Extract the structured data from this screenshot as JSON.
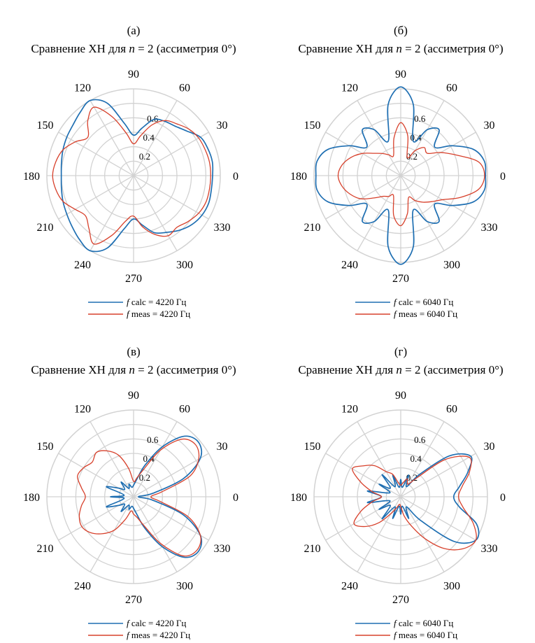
{
  "charts": [
    {
      "panel_label": "(а)",
      "title_prefix": "Сравнение ХН для ",
      "title_n": "n",
      "title_suffix": " = 2 (ассиметрия 0°)",
      "legend": [
        {
          "italic": "f",
          "text": " calc = 4220 Гц",
          "color": "#1f6fb2"
        },
        {
          "italic": "f",
          "text": " meas = 4220 Гц",
          "color": "#d7402b"
        }
      ]
    },
    {
      "panel_label": "(б)",
      "title_prefix": "Сравнение ХН для ",
      "title_n": "n",
      "title_suffix": " = 2 (ассиметрия 0°)",
      "legend": [
        {
          "italic": "f",
          "text": " calc = 6040 Гц",
          "color": "#1f6fb2"
        },
        {
          "italic": "f",
          "text": " meas = 6040 Гц",
          "color": "#d7402b"
        }
      ]
    },
    {
      "panel_label": "(в)",
      "title_prefix": "Сравнение ХН для ",
      "title_n": "n",
      "title_suffix": " = 2 (ассиметрия 0°)",
      "legend": [
        {
          "italic": "f",
          "text": " calc = 4220 Гц",
          "color": "#1f6fb2"
        },
        {
          "italic": "f",
          "text": " meas = 4220 Гц",
          "color": "#d7402b"
        }
      ]
    },
    {
      "panel_label": "(г)",
      "title_prefix": "Сравнение ХН для ",
      "title_n": "n",
      "title_suffix": " = 2 (ассиметрия 0°)",
      "legend": [
        {
          "italic": "f",
          "text": " calc = 6040 Гц",
          "color": "#1f6fb2"
        },
        {
          "italic": "f",
          "text": " meas = 6040 Гц",
          "color": "#d7402b"
        }
      ]
    }
  ],
  "chart_data": [
    {
      "type": "polar-line",
      "panel": "(а)",
      "title": "Сравнение ХН для n = 2 (ассиметрия 0°)",
      "r_ticks": [
        "0.2",
        "0.4",
        "0.6"
      ],
      "r_range": [
        0,
        0.9
      ],
      "theta_ticks": [
        "0",
        "30",
        "60",
        "90",
        "120",
        "150",
        "180",
        "210",
        "240",
        "270",
        "300",
        "330"
      ],
      "grid": true,
      "legend_position": "bottom",
      "series": [
        {
          "name": "f calc = 4220 Гц",
          "color": "#1f6fb2",
          "theta": [
            0,
            10,
            20,
            30,
            40,
            50,
            60,
            70,
            80,
            90,
            100,
            110,
            120,
            130,
            140,
            150,
            160,
            170,
            180,
            190,
            200,
            210,
            220,
            230,
            240,
            250,
            260,
            270,
            280,
            290,
            300,
            310,
            320,
            330,
            340,
            350
          ],
          "r": [
            0.82,
            0.83,
            0.82,
            0.8,
            0.72,
            0.67,
            0.65,
            0.62,
            0.5,
            0.42,
            0.55,
            0.8,
            0.9,
            0.86,
            0.82,
            0.8,
            0.78,
            0.76,
            0.75,
            0.76,
            0.78,
            0.8,
            0.83,
            0.87,
            0.9,
            0.8,
            0.56,
            0.45,
            0.52,
            0.63,
            0.68,
            0.74,
            0.79,
            0.82,
            0.83,
            0.82
          ]
        },
        {
          "name": "f meas = 4220 Гц",
          "color": "#d7402b",
          "theta": [
            0,
            10,
            20,
            30,
            40,
            50,
            60,
            70,
            80,
            90,
            100,
            110,
            120,
            130,
            140,
            150,
            160,
            170,
            180,
            190,
            200,
            210,
            220,
            230,
            240,
            250,
            260,
            270,
            280,
            290,
            300,
            310,
            320,
            330,
            340,
            350
          ],
          "r": [
            0.8,
            0.8,
            0.79,
            0.78,
            0.75,
            0.7,
            0.66,
            0.56,
            0.42,
            0.33,
            0.45,
            0.65,
            0.82,
            0.74,
            0.62,
            0.7,
            0.78,
            0.82,
            0.84,
            0.82,
            0.78,
            0.7,
            0.65,
            0.72,
            0.82,
            0.66,
            0.48,
            0.42,
            0.54,
            0.65,
            0.72,
            0.7,
            0.74,
            0.78,
            0.8,
            0.8
          ]
        }
      ]
    },
    {
      "type": "polar-line",
      "panel": "(б)",
      "title": "Сравнение ХН для n = 2 (ассиметрия 0°)",
      "r_ticks": [
        "0.2",
        "0.4",
        "0.6"
      ],
      "r_range": [
        0,
        0.9
      ],
      "theta_ticks": [
        "0",
        "30",
        "60",
        "90",
        "120",
        "150",
        "180",
        "210",
        "240",
        "270",
        "300",
        "330"
      ],
      "grid": true,
      "legend_position": "bottom",
      "series": [
        {
          "name": "f calc = 6040 Гц",
          "color": "#1f6fb2",
          "theta": [
            0,
            10,
            20,
            30,
            40,
            50,
            60,
            70,
            80,
            90,
            100,
            110,
            120,
            130,
            140,
            150,
            160,
            170,
            180,
            190,
            200,
            210,
            220,
            230,
            240,
            250,
            260,
            270,
            280,
            290,
            300,
            310,
            320,
            330,
            340,
            350
          ],
          "r": [
            0.88,
            0.88,
            0.8,
            0.62,
            0.46,
            0.62,
            0.55,
            0.38,
            0.75,
            0.92,
            0.75,
            0.38,
            0.55,
            0.62,
            0.46,
            0.62,
            0.8,
            0.88,
            0.88,
            0.88,
            0.8,
            0.62,
            0.46,
            0.62,
            0.55,
            0.38,
            0.75,
            0.92,
            0.75,
            0.38,
            0.55,
            0.62,
            0.46,
            0.62,
            0.8,
            0.88
          ]
        },
        {
          "name": "f meas = 6040 Гц",
          "color": "#d7402b",
          "theta": [
            0,
            10,
            20,
            30,
            40,
            50,
            60,
            70,
            80,
            90,
            100,
            110,
            120,
            130,
            140,
            150,
            160,
            170,
            180,
            190,
            200,
            210,
            220,
            230,
            240,
            250,
            260,
            270,
            280,
            290,
            300,
            310,
            320,
            330,
            340,
            350
          ],
          "r": [
            0.87,
            0.82,
            0.62,
            0.48,
            0.36,
            0.38,
            0.3,
            0.2,
            0.42,
            0.55,
            0.4,
            0.22,
            0.25,
            0.3,
            0.36,
            0.46,
            0.55,
            0.62,
            0.65,
            0.62,
            0.56,
            0.48,
            0.36,
            0.28,
            0.25,
            0.22,
            0.42,
            0.52,
            0.4,
            0.24,
            0.3,
            0.36,
            0.42,
            0.5,
            0.66,
            0.82
          ]
        }
      ]
    },
    {
      "type": "polar-line",
      "panel": "(в)",
      "title": "Сравнение ХН для n = 2 (ассиметрия 0°)",
      "r_ticks": [
        "0.2",
        "0.4",
        "0.6"
      ],
      "r_range": [
        0,
        0.9
      ],
      "theta_ticks": [
        "0",
        "30",
        "60",
        "90",
        "120",
        "150",
        "180",
        "210",
        "240",
        "270",
        "300",
        "330"
      ],
      "grid": true,
      "legend_position": "bottom",
      "series": [
        {
          "name": "f calc = 4220 Гц",
          "color": "#1f6fb2",
          "theta": [
            0,
            10,
            20,
            30,
            40,
            50,
            60,
            70,
            80,
            90,
            100,
            110,
            120,
            130,
            140,
            150,
            160,
            170,
            180,
            190,
            200,
            210,
            220,
            230,
            240,
            250,
            260,
            270,
            280,
            290,
            300,
            310,
            320,
            330,
            340,
            350
          ],
          "r": [
            0.05,
            0.2,
            0.55,
            0.8,
            0.88,
            0.82,
            0.6,
            0.35,
            0.18,
            0.12,
            0.1,
            0.14,
            0.1,
            0.2,
            0.12,
            0.18,
            0.3,
            0.1,
            0.24,
            0.1,
            0.3,
            0.18,
            0.12,
            0.2,
            0.1,
            0.14,
            0.1,
            0.12,
            0.18,
            0.35,
            0.6,
            0.82,
            0.88,
            0.8,
            0.55,
            0.2
          ]
        },
        {
          "name": "f meas = 4220 Гц",
          "color": "#d7402b",
          "theta": [
            0,
            10,
            20,
            30,
            40,
            50,
            60,
            70,
            80,
            90,
            100,
            110,
            120,
            130,
            140,
            150,
            160,
            170,
            180,
            190,
            200,
            210,
            220,
            230,
            240,
            250,
            260,
            270,
            280,
            290,
            300,
            310,
            320,
            330,
            340,
            350
          ],
          "r": [
            0.18,
            0.3,
            0.62,
            0.78,
            0.84,
            0.78,
            0.56,
            0.3,
            0.2,
            0.16,
            0.3,
            0.46,
            0.55,
            0.6,
            0.56,
            0.6,
            0.62,
            0.55,
            0.5,
            0.55,
            0.6,
            0.62,
            0.58,
            0.5,
            0.4,
            0.25,
            0.15,
            0.18,
            0.22,
            0.32,
            0.56,
            0.8,
            0.86,
            0.8,
            0.6,
            0.28
          ]
        }
      ]
    },
    {
      "type": "polar-line",
      "panel": "(г)",
      "title": "Сравнение ХН для n = 2 (ассиметрия 0°)",
      "r_ticks": [
        "0.2",
        "0.4",
        "0.6"
      ],
      "r_range": [
        0,
        0.9
      ],
      "theta_ticks": [
        "0",
        "30",
        "60",
        "90",
        "120",
        "150",
        "180",
        "210",
        "240",
        "270",
        "300",
        "330"
      ],
      "grid": true,
      "legend_position": "bottom",
      "series": [
        {
          "name": "f calc = 6040 Гц",
          "color": "#1f6fb2",
          "theta": [
            0,
            10,
            20,
            30,
            40,
            50,
            60,
            70,
            80,
            90,
            100,
            110,
            120,
            130,
            140,
            150,
            160,
            170,
            180,
            190,
            200,
            210,
            220,
            230,
            240,
            250,
            260,
            270,
            280,
            290,
            300,
            310,
            320,
            330,
            340,
            350
          ],
          "r": [
            0.55,
            0.62,
            0.74,
            0.84,
            0.66,
            0.3,
            0.12,
            0.24,
            0.1,
            0.18,
            0.1,
            0.24,
            0.12,
            0.3,
            0.14,
            0.26,
            0.12,
            0.35,
            0.2,
            0.35,
            0.12,
            0.26,
            0.14,
            0.3,
            0.12,
            0.24,
            0.1,
            0.18,
            0.1,
            0.24,
            0.12,
            0.32,
            0.72,
            0.9,
            0.84,
            0.62
          ]
        },
        {
          "name": "f meas = 6040 Гц",
          "color": "#d7402b",
          "theta": [
            0,
            10,
            20,
            30,
            40,
            50,
            60,
            70,
            80,
            90,
            100,
            110,
            120,
            130,
            140,
            150,
            160,
            170,
            180,
            190,
            200,
            210,
            220,
            230,
            240,
            250,
            260,
            270,
            280,
            290,
            300,
            310,
            320,
            330,
            340,
            350
          ],
          "r": [
            0.6,
            0.65,
            0.76,
            0.82,
            0.6,
            0.25,
            0.15,
            0.2,
            0.15,
            0.12,
            0.15,
            0.25,
            0.3,
            0.42,
            0.5,
            0.58,
            0.44,
            0.3,
            0.2,
            0.3,
            0.44,
            0.56,
            0.48,
            0.35,
            0.2,
            0.12,
            0.08,
            0.1,
            0.2,
            0.32,
            0.5,
            0.7,
            0.84,
            0.9,
            0.8,
            0.66
          ]
        }
      ]
    }
  ]
}
